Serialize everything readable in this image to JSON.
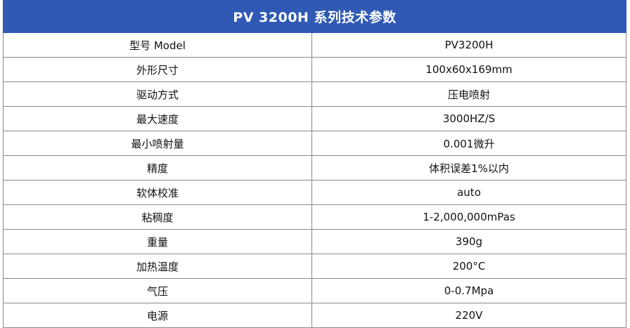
{
  "table": {
    "title": "PV 3200H 系列技术参数",
    "rows": [
      {
        "label": "型号 Model",
        "value": "PV3200H"
      },
      {
        "label": "外形尺寸",
        "value": "100x60x169mm"
      },
      {
        "label": "驱动方式",
        "value": "压电喷射"
      },
      {
        "label": "最大速度",
        "value": "3000HZ/S"
      },
      {
        "label": "最小喷射量",
        "value": "0.001微升"
      },
      {
        "label": "精度",
        "value": "体积误差1%以内"
      },
      {
        "label": "软体校准",
        "value": "auto"
      },
      {
        "label": "粘稠度",
        "value": "1-2,000,000mPas"
      },
      {
        "label": "重量",
        "value": "390g"
      },
      {
        "label": "加热温度",
        "value": "200°C"
      },
      {
        "label": "气压",
        "value": "0-0.7Mpa"
      },
      {
        "label": "电源",
        "value": "220V"
      }
    ]
  },
  "colors": {
    "header_bg": "#2f59b4",
    "header_text": "#ffffff",
    "border": "#8a8a8a"
  }
}
